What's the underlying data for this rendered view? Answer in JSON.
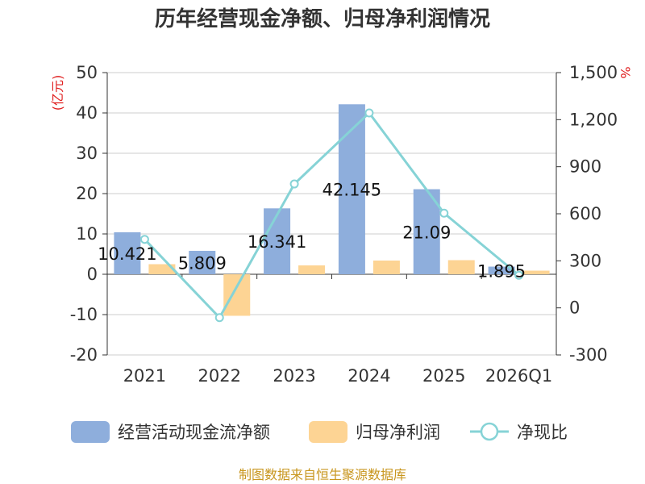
{
  "chart_data": {
    "type": "bar",
    "title": "历年经营现金净额、归母净利润情况",
    "categories": [
      "2021",
      "2022",
      "2023",
      "2024",
      "2025",
      "2026Q1"
    ],
    "series": [
      {
        "name": "经营活动现金流净额",
        "type": "bar",
        "axis": "left",
        "color": "#8eaedc",
        "values": [
          10.421,
          5.809,
          16.341,
          42.145,
          21.09,
          1.895
        ],
        "labels": [
          "10.421",
          "5.809",
          "16.341",
          "42.145",
          "21.09",
          "1.895"
        ]
      },
      {
        "name": "归母净利润",
        "type": "bar",
        "axis": "left",
        "color": "#fdd494",
        "values": [
          2.5,
          -10.3,
          2.2,
          3.4,
          3.5,
          0.9
        ]
      },
      {
        "name": "净现比",
        "type": "line",
        "axis": "right",
        "color": "#86d3d6",
        "values": [
          437,
          -62,
          790,
          1243,
          604,
          208
        ]
      }
    ],
    "yleft": {
      "unit": "(亿元)",
      "ylim": [
        -20,
        50
      ],
      "ticks": [
        -20,
        -10,
        0,
        10,
        20,
        30,
        40,
        50
      ],
      "tick_labels": [
        "-20",
        "-10",
        "0",
        "10",
        "20",
        "30",
        "40",
        "50"
      ]
    },
    "yright": {
      "unit": "%",
      "ylim": [
        -300,
        1500
      ],
      "ticks": [
        -300,
        0,
        300,
        600,
        900,
        1200,
        1500
      ],
      "tick_labels": [
        "-300",
        "0",
        "300",
        "600",
        "900",
        "1,200",
        "1,500"
      ]
    },
    "grid": true,
    "legend_position": "bottom",
    "source": "制图数据来自恒生聚源数据库"
  }
}
